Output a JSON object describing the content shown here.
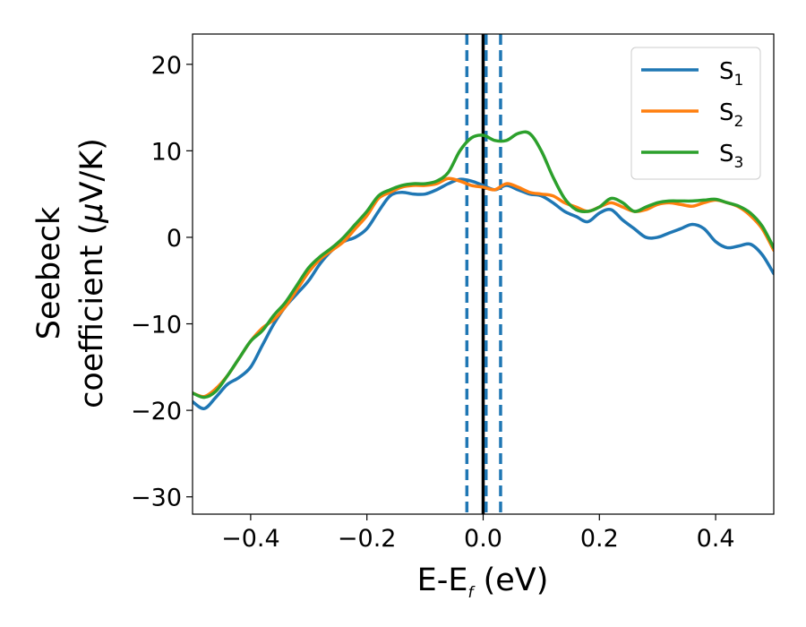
{
  "chart_data": {
    "type": "line",
    "xlabel": {
      "main": "E-E",
      "sub": "f",
      "tail": " (eV)"
    },
    "ylabel": {
      "line1": "Seebeck",
      "line2_pre": "coefficient  (",
      "mu": "μ",
      "line2_post": "V/K)"
    },
    "xlim": [
      -0.5,
      0.5
    ],
    "ylim": [
      -32,
      23.5
    ],
    "x_ticks": [
      -0.4,
      -0.2,
      0.0,
      0.2,
      0.4
    ],
    "x_tick_labels": [
      "−0.4",
      "−0.2",
      "0.0",
      "0.2",
      "0.4"
    ],
    "y_ticks": [
      -30,
      -20,
      -10,
      0,
      10,
      20
    ],
    "y_tick_labels": [
      "−30",
      "−20",
      "−10",
      "0",
      "10",
      "20"
    ],
    "grid": false,
    "legend_position": "top-right",
    "vertical_lines": [
      {
        "x": -0.028,
        "style": "dashed",
        "color": "#1f77b4"
      },
      {
        "x": 0.0,
        "style": "solid",
        "color": "#000000"
      },
      {
        "x": 0.005,
        "style": "dashed",
        "color": "#1f77b4"
      },
      {
        "x": 0.03,
        "style": "dashed",
        "color": "#1f77b4"
      }
    ],
    "series": [
      {
        "name": "S",
        "sub": "1",
        "color": "#1f77b4",
        "x": [
          -0.5,
          -0.48,
          -0.46,
          -0.44,
          -0.42,
          -0.4,
          -0.38,
          -0.36,
          -0.34,
          -0.32,
          -0.3,
          -0.28,
          -0.26,
          -0.24,
          -0.22,
          -0.2,
          -0.18,
          -0.16,
          -0.14,
          -0.12,
          -0.1,
          -0.08,
          -0.06,
          -0.04,
          -0.02,
          0.0,
          0.02,
          0.04,
          0.06,
          0.08,
          0.1,
          0.12,
          0.14,
          0.16,
          0.18,
          0.2,
          0.22,
          0.24,
          0.26,
          0.28,
          0.3,
          0.32,
          0.34,
          0.36,
          0.38,
          0.4,
          0.42,
          0.44,
          0.46,
          0.48,
          0.5
        ],
        "y": [
          -19,
          -19.8,
          -18.5,
          -17,
          -16.2,
          -15,
          -12.5,
          -10,
          -8,
          -6.5,
          -5,
          -3,
          -1.5,
          -0.5,
          0,
          1,
          3,
          4.8,
          5.2,
          5,
          5,
          5.5,
          6.2,
          6.7,
          6.5,
          6,
          5.5,
          6,
          5.5,
          5,
          4.8,
          4,
          3,
          2.4,
          1.8,
          2.8,
          3.2,
          2,
          1,
          0,
          0,
          0.5,
          1,
          1.5,
          1,
          -0.5,
          -1.2,
          -1,
          -0.8,
          -2,
          -4.2
        ]
      },
      {
        "name": "S",
        "sub": "2",
        "color": "#ff7f0e",
        "x": [
          -0.5,
          -0.48,
          -0.46,
          -0.44,
          -0.42,
          -0.4,
          -0.38,
          -0.36,
          -0.34,
          -0.32,
          -0.3,
          -0.28,
          -0.26,
          -0.24,
          -0.22,
          -0.2,
          -0.18,
          -0.16,
          -0.14,
          -0.12,
          -0.1,
          -0.08,
          -0.06,
          -0.04,
          -0.02,
          0.0,
          0.02,
          0.04,
          0.06,
          0.08,
          0.1,
          0.12,
          0.14,
          0.16,
          0.18,
          0.2,
          0.22,
          0.24,
          0.26,
          0.28,
          0.3,
          0.32,
          0.34,
          0.36,
          0.38,
          0.4,
          0.42,
          0.44,
          0.46,
          0.48,
          0.5
        ],
        "y": [
          -18,
          -18.4,
          -17.5,
          -16,
          -14,
          -12,
          -10.5,
          -9.5,
          -8,
          -6,
          -4,
          -2.5,
          -1.5,
          -0.5,
          1,
          2.5,
          4.5,
          5.2,
          5.8,
          6,
          6,
          6.2,
          6.8,
          6.5,
          6,
          5.8,
          5.5,
          6.2,
          5.8,
          5.2,
          5,
          4.8,
          4,
          3.5,
          3,
          3.5,
          4,
          3.5,
          3,
          3.2,
          3.8,
          4,
          3.8,
          3.6,
          4,
          4.3,
          4,
          3.5,
          2.5,
          1,
          -1.5
        ]
      },
      {
        "name": "S",
        "sub": "3",
        "color": "#2ca02c",
        "x": [
          -0.5,
          -0.48,
          -0.46,
          -0.44,
          -0.42,
          -0.4,
          -0.38,
          -0.36,
          -0.34,
          -0.32,
          -0.3,
          -0.28,
          -0.26,
          -0.24,
          -0.22,
          -0.2,
          -0.18,
          -0.16,
          -0.14,
          -0.12,
          -0.1,
          -0.08,
          -0.06,
          -0.04,
          -0.02,
          0.0,
          0.02,
          0.04,
          0.06,
          0.08,
          0.1,
          0.12,
          0.14,
          0.16,
          0.18,
          0.2,
          0.22,
          0.24,
          0.26,
          0.28,
          0.3,
          0.32,
          0.34,
          0.36,
          0.38,
          0.4,
          0.42,
          0.44,
          0.46,
          0.48,
          0.5
        ],
        "y": [
          -18,
          -18.5,
          -17.8,
          -16,
          -14,
          -12,
          -10.8,
          -9,
          -7.5,
          -5.5,
          -3.5,
          -2.2,
          -1.2,
          0,
          1.5,
          3,
          4.8,
          5.5,
          6,
          6.2,
          6.2,
          6.5,
          7.5,
          10,
          11.5,
          11.8,
          11.2,
          11.2,
          12,
          12,
          10,
          7,
          4.5,
          3.2,
          3,
          3.5,
          4.5,
          4,
          3,
          3.5,
          4,
          4.2,
          4.2,
          4.2,
          4.3,
          4.4,
          4,
          3.6,
          2.8,
          1.3,
          -1.2
        ]
      }
    ]
  }
}
